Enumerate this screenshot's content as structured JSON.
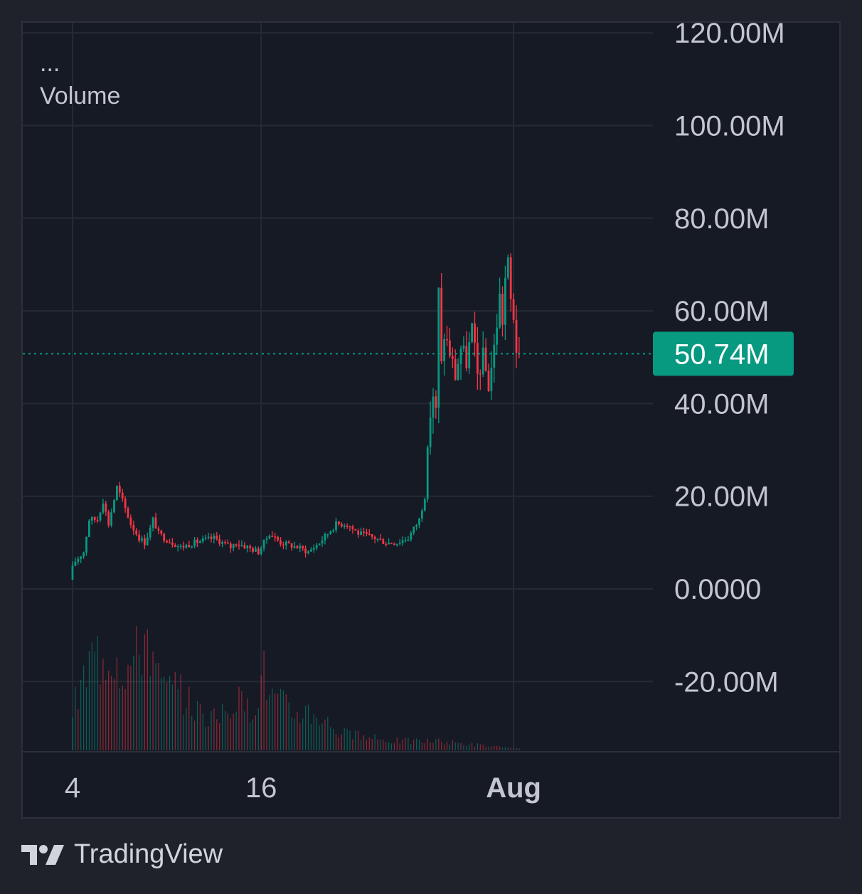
{
  "legend": {
    "menu": "...",
    "title": "Volume"
  },
  "brand": {
    "name": "TradingView",
    "logo_icon": "tradingview-logo-icon"
  },
  "price_label": {
    "text": "50.74M",
    "value": 50.74,
    "color": "#089981"
  },
  "colors": {
    "up": "#089981",
    "down": "#f23645",
    "grid": "#262a35",
    "text": "#c3c6ce",
    "background": "#161a25"
  },
  "chart_data": {
    "type": "candlestick",
    "ylim": [
      -35,
      123
    ],
    "y_ticks": [
      {
        "value": 120,
        "label": "120.00M"
      },
      {
        "value": 100,
        "label": "100.00M"
      },
      {
        "value": 80,
        "label": "80.00M"
      },
      {
        "value": 60,
        "label": "60.00M"
      },
      {
        "value": 40,
        "label": "40.00M"
      },
      {
        "value": 20,
        "label": "20.00M"
      },
      {
        "value": 0,
        "label": "0.0000"
      },
      {
        "value": -20,
        "label": "-20.00M"
      }
    ],
    "x_ticks": [
      {
        "index": 0,
        "label": "4",
        "bold": false
      },
      {
        "index": 68,
        "label": "16",
        "bold": false
      },
      {
        "index": 159,
        "label": "Aug",
        "bold": true
      }
    ],
    "candle_count": 162,
    "last_value": 50.74,
    "anchors": [
      {
        "i": 0,
        "v": 3
      },
      {
        "i": 2,
        "v": 6
      },
      {
        "i": 5,
        "v": 8
      },
      {
        "i": 7,
        "v": 15
      },
      {
        "i": 10,
        "v": 15
      },
      {
        "i": 12,
        "v": 19
      },
      {
        "i": 14,
        "v": 14
      },
      {
        "i": 17,
        "v": 22
      },
      {
        "i": 19,
        "v": 19
      },
      {
        "i": 22,
        "v": 14
      },
      {
        "i": 25,
        "v": 11
      },
      {
        "i": 27,
        "v": 10
      },
      {
        "i": 29,
        "v": 13
      },
      {
        "i": 30,
        "v": 15
      },
      {
        "i": 32,
        "v": 12
      },
      {
        "i": 34,
        "v": 11
      },
      {
        "i": 40,
        "v": 9
      },
      {
        "i": 45,
        "v": 10
      },
      {
        "i": 52,
        "v": 11
      },
      {
        "i": 58,
        "v": 9
      },
      {
        "i": 60,
        "v": 10
      },
      {
        "i": 64,
        "v": 9
      },
      {
        "i": 68,
        "v": 8
      },
      {
        "i": 72,
        "v": 12
      },
      {
        "i": 76,
        "v": 10
      },
      {
        "i": 82,
        "v": 9
      },
      {
        "i": 86,
        "v": 8
      },
      {
        "i": 90,
        "v": 10
      },
      {
        "i": 93,
        "v": 12
      },
      {
        "i": 96,
        "v": 14
      },
      {
        "i": 100,
        "v": 14
      },
      {
        "i": 104,
        "v": 12
      },
      {
        "i": 110,
        "v": 11
      },
      {
        "i": 114,
        "v": 10
      },
      {
        "i": 118,
        "v": 10
      },
      {
        "i": 122,
        "v": 11
      },
      {
        "i": 126,
        "v": 15
      },
      {
        "i": 128,
        "v": 20
      },
      {
        "i": 129,
        "v": 30
      },
      {
        "i": 130,
        "v": 38
      },
      {
        "i": 131,
        "v": 42
      },
      {
        "i": 132,
        "v": 38
      },
      {
        "i": 133,
        "v": 64
      },
      {
        "i": 134,
        "v": 48
      },
      {
        "i": 135,
        "v": 55
      },
      {
        "i": 137,
        "v": 51
      },
      {
        "i": 139,
        "v": 46
      },
      {
        "i": 141,
        "v": 52
      },
      {
        "i": 143,
        "v": 49
      },
      {
        "i": 145,
        "v": 56
      },
      {
        "i": 147,
        "v": 46
      },
      {
        "i": 149,
        "v": 50
      },
      {
        "i": 151,
        "v": 44
      },
      {
        "i": 153,
        "v": 52
      },
      {
        "i": 155,
        "v": 63
      },
      {
        "i": 156,
        "v": 58
      },
      {
        "i": 157,
        "v": 67
      },
      {
        "i": 158,
        "v": 70
      },
      {
        "i": 159,
        "v": 62
      },
      {
        "i": 160,
        "v": 59
      },
      {
        "i": 161,
        "v": 52
      },
      {
        "i": 162,
        "v": 50.74
      }
    ],
    "volume_profile": [
      {
        "i": 0,
        "v": 0.3
      },
      {
        "i": 7,
        "v": 0.7
      },
      {
        "i": 14,
        "v": 0.78
      },
      {
        "i": 20,
        "v": 0.62
      },
      {
        "i": 24,
        "v": 0.74
      },
      {
        "i": 27,
        "v": 0.95
      },
      {
        "i": 30,
        "v": 0.55
      },
      {
        "i": 34,
        "v": 0.45
      },
      {
        "i": 40,
        "v": 0.42
      },
      {
        "i": 45,
        "v": 0.3
      },
      {
        "i": 52,
        "v": 0.22
      },
      {
        "i": 58,
        "v": 0.38
      },
      {
        "i": 64,
        "v": 0.3
      },
      {
        "i": 69,
        "v": 0.58
      },
      {
        "i": 72,
        "v": 0.4
      },
      {
        "i": 80,
        "v": 0.28
      },
      {
        "i": 85,
        "v": 0.3
      },
      {
        "i": 90,
        "v": 0.25
      },
      {
        "i": 96,
        "v": 0.14
      },
      {
        "i": 104,
        "v": 0.1
      },
      {
        "i": 112,
        "v": 0.08
      },
      {
        "i": 120,
        "v": 0.07
      },
      {
        "i": 128,
        "v": 0.07
      },
      {
        "i": 136,
        "v": 0.06
      },
      {
        "i": 146,
        "v": 0.04
      },
      {
        "i": 155,
        "v": 0.02
      },
      {
        "i": 162,
        "v": 0.01
      }
    ],
    "volume_max_fraction": 0.255
  }
}
